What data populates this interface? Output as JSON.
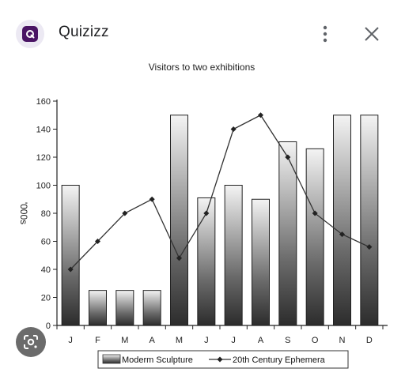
{
  "header": {
    "app_name": "Quizizz",
    "icon": "quizizz-logo-icon",
    "menu_icon": "more-vert-icon",
    "close_icon": "close-icon"
  },
  "lens": {
    "icon": "google-lens-icon"
  },
  "colors": {
    "brand": "#4a1464",
    "brand_bg": "#ece9f3"
  },
  "chart_data": {
    "type": "bar",
    "title": "Visitors to two exhibitions",
    "ylabel": "'000s",
    "xlabel": "",
    "ylim": [
      0,
      160
    ],
    "yticks": [
      0,
      20,
      40,
      60,
      80,
      100,
      120,
      140,
      160
    ],
    "grid": false,
    "legend": "bottom",
    "categories": [
      "J",
      "F",
      "M",
      "A",
      "M",
      "J",
      "J",
      "A",
      "S",
      "O",
      "N",
      "D"
    ],
    "series": [
      {
        "name": "Moderm Sculpture",
        "kind": "bar",
        "values": [
          100,
          25,
          25,
          25,
          150,
          91,
          100,
          90,
          131,
          126,
          150,
          150
        ]
      },
      {
        "name": "20th Century Ephemera",
        "kind": "line",
        "values": [
          40,
          60,
          80,
          90,
          48,
          80,
          140,
          150,
          120,
          80,
          65,
          56
        ]
      }
    ]
  }
}
